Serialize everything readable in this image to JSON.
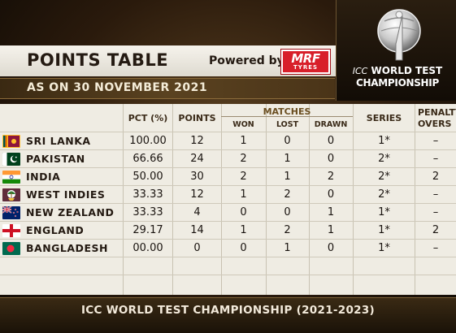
{
  "header": {
    "title": "POINTS TABLE",
    "powered_by": "Powered by",
    "sponsor_line1": "MRF",
    "sponsor_line2": "TYRES",
    "date": "AS ON 30 NOVEMBER 2021"
  },
  "logo": {
    "line1_prefix": "ICC",
    "line1": "WORLD TEST",
    "line2": "CHAMPIONSHIP"
  },
  "columns": {
    "pct": "PCT (%)",
    "points": "POINTS",
    "matches": "MATCHES",
    "won": "WON",
    "lost": "LOST",
    "drawn": "DRAWN",
    "series": "SERIES",
    "penalty_line1": "PENALTY",
    "penalty_line2": "OVERS"
  },
  "rows": [
    {
      "team": "SRI LANKA",
      "flag": "sri-lanka-flag",
      "pct": "100.00",
      "points": "12",
      "won": "1",
      "lost": "0",
      "drawn": "0",
      "series": "1*",
      "penalty": "–"
    },
    {
      "team": "PAKISTAN",
      "flag": "pakistan-flag",
      "pct": "66.66",
      "points": "24",
      "won": "2",
      "lost": "1",
      "drawn": "0",
      "series": "2*",
      "penalty": "–"
    },
    {
      "team": "INDIA",
      "flag": "india-flag",
      "pct": "50.00",
      "points": "30",
      "won": "2",
      "lost": "1",
      "drawn": "2",
      "series": "2*",
      "penalty": "2"
    },
    {
      "team": "WEST INDIES",
      "flag": "west-indies-flag",
      "pct": "33.33",
      "points": "12",
      "won": "1",
      "lost": "2",
      "drawn": "0",
      "series": "2*",
      "penalty": "–"
    },
    {
      "team": "NEW ZEALAND",
      "flag": "new-zealand-flag",
      "pct": "33.33",
      "points": "4",
      "won": "0",
      "lost": "0",
      "drawn": "1",
      "series": "1*",
      "penalty": "–"
    },
    {
      "team": "ENGLAND",
      "flag": "england-flag",
      "pct": "29.17",
      "points": "14",
      "won": "1",
      "lost": "2",
      "drawn": "1",
      "series": "1*",
      "penalty": "2"
    },
    {
      "team": "BANGLADESH",
      "flag": "bangladesh-flag",
      "pct": "00.00",
      "points": "0",
      "won": "0",
      "lost": "1",
      "drawn": "0",
      "series": "1*",
      "penalty": "–"
    }
  ],
  "footer": "ICC WORLD TEST CHAMPIONSHIP (2021-2023)"
}
